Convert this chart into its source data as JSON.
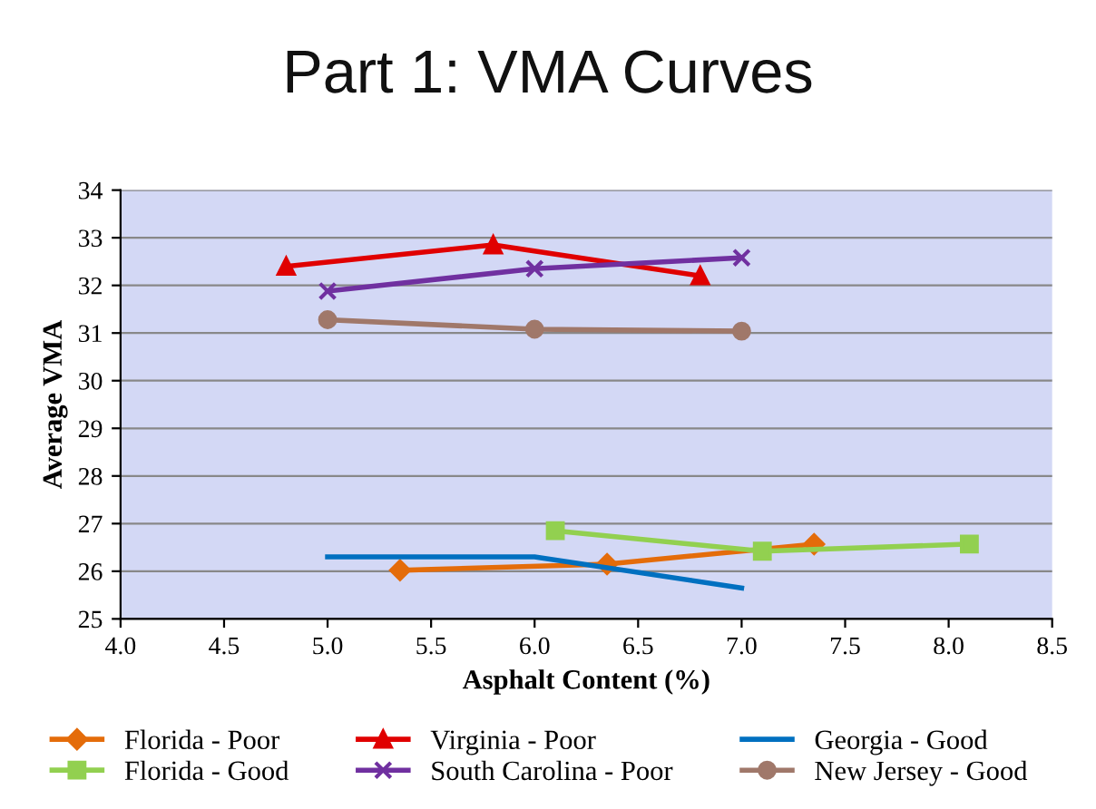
{
  "chart_data": {
    "type": "line",
    "title": "Part 1: VMA Curves",
    "xlabel": "Asphalt Content (%)",
    "ylabel": "Average VMA",
    "xlim": [
      4.0,
      8.5
    ],
    "xticks": [
      {
        "value": 4.0,
        "label": "4.0"
      },
      {
        "value": 4.5,
        "label": "4.5"
      },
      {
        "value": 5.0,
        "label": "5.0"
      },
      {
        "value": 5.5,
        "label": "5.5"
      },
      {
        "value": 6.0,
        "label": "6.0"
      },
      {
        "value": 6.5,
        "label": "6.5"
      },
      {
        "value": 7.0,
        "label": "7.0"
      },
      {
        "value": 7.5,
        "label": "7.5"
      },
      {
        "value": 8.0,
        "label": "8.0"
      },
      {
        "value": 8.5,
        "label": "8.5"
      }
    ],
    "ylim": [
      25,
      34
    ],
    "yticks": [
      25,
      26,
      27,
      28,
      29,
      30,
      31,
      32,
      33,
      34
    ],
    "grid": "y",
    "legend": "bottom",
    "series": [
      {
        "name": "Florida - Poor",
        "color": "#e46c0a",
        "marker": "diamond",
        "x": [
          5.35,
          6.35,
          7.35
        ],
        "values": [
          26.02,
          26.15,
          26.57
        ]
      },
      {
        "name": "Florida - Good",
        "color": "#92d050",
        "marker": "square",
        "x": [
          6.1,
          7.1,
          8.1
        ],
        "values": [
          26.85,
          26.42,
          26.57
        ]
      },
      {
        "name": "Virginia - Poor",
        "color": "#e00000",
        "marker": "triangle",
        "x": [
          4.8,
          5.8,
          6.8
        ],
        "values": [
          32.4,
          32.85,
          32.2
        ]
      },
      {
        "name": "South Carolina - Poor",
        "color": "#7030a0",
        "marker": "cross",
        "x": [
          5.0,
          6.0,
          7.0
        ],
        "values": [
          31.88,
          32.35,
          32.58
        ]
      },
      {
        "name": "Georgia - Good",
        "color": "#0070c0",
        "marker": "none",
        "x": [
          5.0,
          6.0,
          7.0
        ],
        "values": [
          26.3,
          26.3,
          25.65
        ]
      },
      {
        "name": "New Jersey - Good",
        "color": "#a0786a",
        "marker": "circle",
        "x": [
          5.0,
          6.0,
          7.0
        ],
        "values": [
          31.28,
          31.08,
          31.04
        ]
      }
    ]
  }
}
